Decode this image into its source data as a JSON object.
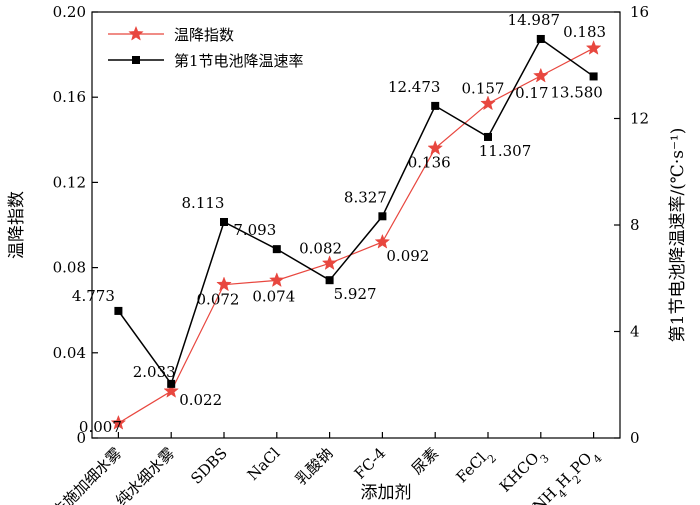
{
  "chart_data": {
    "type": "line",
    "xlabel": "添加剂",
    "ylabel": "温降指数",
    "y2label": "第1节电池降温速率/(℃·s⁻¹)",
    "categories": [
      {
        "text": "未施加细水雾"
      },
      {
        "text": "纯水细水雾"
      },
      {
        "text": "SDBS"
      },
      {
        "text": "NaCl"
      },
      {
        "text": "乳酸钠"
      },
      {
        "text": "FC-4"
      },
      {
        "text": "尿素"
      },
      {
        "text": "FeCl",
        "sub": "2"
      },
      {
        "text": "KHCO",
        "sub": "3"
      },
      {
        "text": "NH",
        "sub": "4",
        "text2": "H",
        "sub2": "2",
        "text3": "PO",
        "sub3": "4"
      }
    ],
    "ylim": [
      0,
      0.2
    ],
    "yticks": [
      "0",
      "0.04",
      "0.08",
      "0.12",
      "0.16",
      "0.20"
    ],
    "y2lim": [
      0,
      16
    ],
    "y2ticks": [
      "0",
      "4",
      "8",
      "12",
      "16"
    ],
    "legend_position": "top-left",
    "series": [
      {
        "name": "温降指数",
        "axis": "left",
        "color": "#e8473f",
        "marker": "star",
        "values": [
          0.007,
          0.022,
          0.072,
          0.074,
          0.082,
          0.092,
          0.136,
          0.157,
          0.17,
          0.183
        ],
        "labels": [
          "0.007",
          "0.022",
          "0.072",
          "0.074",
          "0.082",
          "0.092",
          "0.136",
          "0.157",
          "0.17",
          "0.183"
        ]
      },
      {
        "name": "第1节电池降温速率",
        "axis": "right",
        "color": "#000000",
        "marker": "square",
        "values": [
          4.773,
          2.033,
          8.113,
          7.093,
          5.927,
          8.327,
          12.473,
          11.307,
          14.987,
          13.58
        ],
        "labels": [
          "4.773",
          "2.033",
          "8.113",
          "7.093",
          "5.927",
          "8.327",
          "12.473",
          "11.307",
          "14.987",
          "13.580"
        ]
      }
    ]
  }
}
